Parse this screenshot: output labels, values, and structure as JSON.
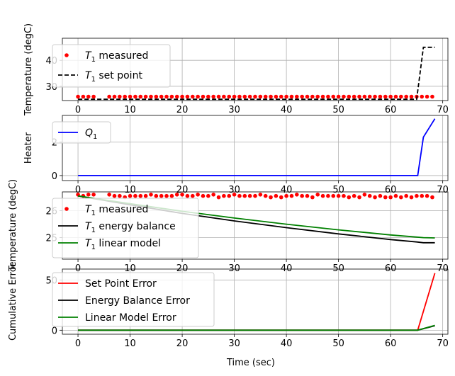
{
  "chart_data": [
    {
      "type": "line",
      "ylabel": "Temperature (degC)",
      "xlim": [
        -3,
        71
      ],
      "ylim": [
        24.5,
        48.5
      ],
      "xticks": [
        0,
        10,
        20,
        30,
        40,
        50,
        60,
        70
      ],
      "yticks": [
        30,
        40
      ],
      "series": [
        {
          "name": "T1 measured",
          "legend_main": "T",
          "legend_sub": "1",
          "legend_rest": " measured",
          "style": "dots",
          "color": "#ff0000",
          "x": [
            0,
            1,
            2,
            3,
            6,
            7,
            8,
            9,
            10,
            11,
            12,
            13,
            14,
            15,
            16,
            17,
            18,
            19,
            20,
            21,
            22,
            23,
            24,
            25,
            26,
            27,
            28,
            29,
            30,
            31,
            32,
            33,
            34,
            35,
            36,
            37,
            38,
            39,
            40,
            41,
            42,
            43,
            44,
            45,
            46,
            47,
            48,
            49,
            50,
            51,
            52,
            53,
            54,
            55,
            56,
            57,
            58,
            59,
            60,
            61,
            62,
            63,
            64,
            65,
            66,
            67,
            68
          ],
          "y": [
            26,
            26,
            26,
            26,
            26,
            26,
            26,
            26,
            26,
            26,
            26,
            26,
            26,
            26,
            26,
            26,
            26,
            26,
            26,
            26,
            26,
            26,
            26,
            26,
            26,
            26,
            26,
            26,
            26,
            26,
            26,
            26,
            26,
            26,
            26,
            26,
            26,
            26,
            26,
            26,
            26,
            26,
            26,
            26,
            26,
            26,
            26,
            26,
            26,
            26,
            26,
            26,
            26,
            26,
            26,
            26,
            26,
            26,
            26,
            26,
            26,
            26,
            26,
            26,
            26,
            26,
            26
          ]
        },
        {
          "name": "T1 set point",
          "legend_main": "T",
          "legend_sub": "1",
          "legend_rest": " set point",
          "style": "dashed",
          "color": "#000000",
          "x": [
            0,
            65,
            66.3,
            68.5
          ],
          "y": [
            25,
            25,
            45,
            45
          ]
        }
      ]
    },
    {
      "type": "line",
      "ylabel": "Heater",
      "xlim": [
        -3,
        71
      ],
      "ylim": [
        -0.3,
        3.6
      ],
      "xticks": [
        0,
        10,
        20,
        30,
        40,
        50,
        60,
        70
      ],
      "yticks": [
        0,
        2
      ],
      "series": [
        {
          "name": "Q1",
          "legend_main": "Q",
          "legend_sub": "1",
          "legend_rest": "",
          "style": "solid",
          "color": "#0000ff",
          "x": [
            0,
            65.2,
            66.3,
            68.5
          ],
          "y": [
            0,
            0,
            2.3,
            3.4
          ]
        }
      ]
    },
    {
      "type": "line",
      "ylabel": "Temperature (degC)",
      "xlim": [
        -3,
        71
      ],
      "ylim": [
        24.2,
        26.7
      ],
      "xticks": [
        0,
        10,
        20,
        30,
        40,
        50,
        60,
        70
      ],
      "yticks": [
        25,
        26
      ],
      "series": [
        {
          "name": "T1 measured",
          "legend_main": "T",
          "legend_sub": "1",
          "legend_rest": " measured",
          "style": "dots",
          "color": "#ff0000",
          "x": [
            0,
            1,
            2,
            3,
            6,
            7,
            8,
            9,
            10,
            11,
            12,
            13,
            14,
            15,
            16,
            17,
            18,
            19,
            20,
            21,
            22,
            23,
            24,
            25,
            26,
            27,
            28,
            29,
            30,
            31,
            32,
            33,
            34,
            35,
            36,
            37,
            38,
            39,
            40,
            41,
            42,
            43,
            44,
            45,
            46,
            47,
            48,
            49,
            50,
            51,
            52,
            53,
            54,
            55,
            56,
            57,
            58,
            59,
            60,
            61,
            62,
            63,
            64,
            65,
            66,
            67,
            68
          ],
          "y": [
            26.6,
            26.55,
            26.6,
            26.6,
            26.6,
            26.55,
            26.55,
            26.5,
            26.55,
            26.55,
            26.55,
            26.55,
            26.6,
            26.55,
            26.55,
            26.55,
            26.55,
            26.6,
            26.6,
            26.55,
            26.55,
            26.6,
            26.55,
            26.55,
            26.6,
            26.5,
            26.55,
            26.55,
            26.6,
            26.55,
            26.55,
            26.55,
            26.55,
            26.6,
            26.55,
            26.5,
            26.55,
            26.5,
            26.55,
            26.55,
            26.6,
            26.55,
            26.55,
            26.5,
            26.6,
            26.55,
            26.55,
            26.55,
            26.55,
            26.55,
            26.5,
            26.55,
            26.5,
            26.6,
            26.55,
            26.5,
            26.55,
            26.5,
            26.5,
            26.55,
            26.5,
            26.55,
            26.5,
            26.55,
            26.55,
            26.55,
            26.5
          ]
        },
        {
          "name": "T1 energy balance",
          "legend_main": "T",
          "legend_sub": "1",
          "legend_rest": " energy balance",
          "style": "solid",
          "color": "#000000",
          "x": [
            0,
            10,
            20,
            30,
            40,
            50,
            60,
            65,
            66.3,
            68.5
          ],
          "y": [
            26.55,
            26.22,
            25.9,
            25.62,
            25.37,
            25.14,
            24.93,
            24.84,
            24.81,
            24.81
          ]
        },
        {
          "name": "T1 linear model",
          "legend_main": "T",
          "legend_sub": "1",
          "legend_rest": " linear model",
          "style": "solid",
          "color": "#008000",
          "x": [
            0,
            10,
            20,
            30,
            40,
            50,
            60,
            65,
            66.3,
            68.5
          ],
          "y": [
            26.55,
            26.26,
            25.98,
            25.73,
            25.5,
            25.29,
            25.1,
            25.02,
            25.0,
            24.99
          ]
        }
      ]
    },
    {
      "type": "line",
      "xlabel": "Time (sec)",
      "ylabel": "Cumulative Error",
      "xlim": [
        -3,
        71
      ],
      "ylim": [
        -4,
        61
      ],
      "xticks": [
        0,
        10,
        20,
        30,
        40,
        50,
        60,
        70
      ],
      "yticks": [
        0,
        50
      ],
      "series": [
        {
          "name": "Set Point Error",
          "legend_main": "Set Point Error",
          "legend_sub": "",
          "legend_rest": "",
          "style": "solid",
          "color": "#ff0000",
          "x": [
            0,
            65.2,
            68.5
          ],
          "y": [
            0,
            0,
            57
          ]
        },
        {
          "name": "Energy Balance Error",
          "legend_main": "Energy Balance Error",
          "legend_sub": "",
          "legend_rest": "",
          "style": "solid",
          "color": "#000000",
          "x": [
            0,
            65.2,
            68.5
          ],
          "y": [
            0,
            0,
            4.5
          ]
        },
        {
          "name": "Linear Model Error",
          "legend_main": "Linear Model Error",
          "legend_sub": "",
          "legend_rest": "",
          "style": "solid",
          "color": "#008000",
          "x": [
            0,
            65.2,
            68.5
          ],
          "y": [
            0,
            0,
            4.8
          ]
        }
      ]
    }
  ]
}
